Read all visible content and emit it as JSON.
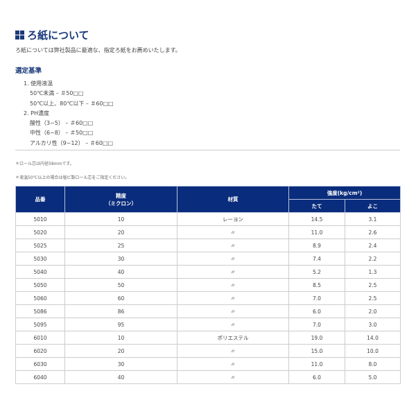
{
  "title": "ろ紙について",
  "intro": "ろ紙については弊社製品に最適な、指定ろ紙をお薦めいたします。",
  "section": "選定基準",
  "criteria": [
    {
      "head": "1. 使用液温",
      "items": [
        "50℃未満 – ＃50□□",
        "50℃以上、80℃以下 – ＃60□□"
      ]
    },
    {
      "head": "2. PH濃度",
      "items": [
        "酸性（3~5） – ＃60□□",
        "中性（6~8） – ＃50□□",
        "アルカリ性（9~12） – ＃60□□"
      ]
    }
  ],
  "notes": [
    "＊ロール芯は内径58mmです。",
    "＊液温50℃以上の場合は塩ビ製ロール芯をご指定ください。"
  ],
  "table": {
    "headers": {
      "part": "品番",
      "precision": "精度",
      "precision_unit": "（ミクロン）",
      "material": "材質",
      "strength": "強度(kg/cm²)",
      "vertical": "たて",
      "horizontal": "よこ"
    },
    "rows": [
      [
        "5010",
        "10",
        "レーヨン",
        "14.5",
        "3.1"
      ],
      [
        "5020",
        "20",
        "〃",
        "11.0",
        "2.6"
      ],
      [
        "5025",
        "25",
        "〃",
        "8.9",
        "2.4"
      ],
      [
        "5030",
        "30",
        "〃",
        "7.4",
        "2.2"
      ],
      [
        "5040",
        "40",
        "〃",
        "5.2",
        "1.3"
      ],
      [
        "5050",
        "50",
        "〃",
        "8.5",
        "2.5"
      ],
      [
        "5060",
        "60",
        "〃",
        "7.0",
        "2.5"
      ],
      [
        "5086",
        "86",
        "〃",
        "6.0",
        "2.0"
      ],
      [
        "5095",
        "95",
        "〃",
        "7.0",
        "3.0"
      ],
      [
        "6010",
        "10",
        "ポリエステル",
        "19.0",
        "14.0"
      ],
      [
        "6020",
        "20",
        "〃",
        "15.0",
        "10.0"
      ],
      [
        "6030",
        "30",
        "〃",
        "11.0",
        "8.0"
      ],
      [
        "6040",
        "40",
        "〃",
        "6.0",
        "5.0"
      ]
    ]
  }
}
